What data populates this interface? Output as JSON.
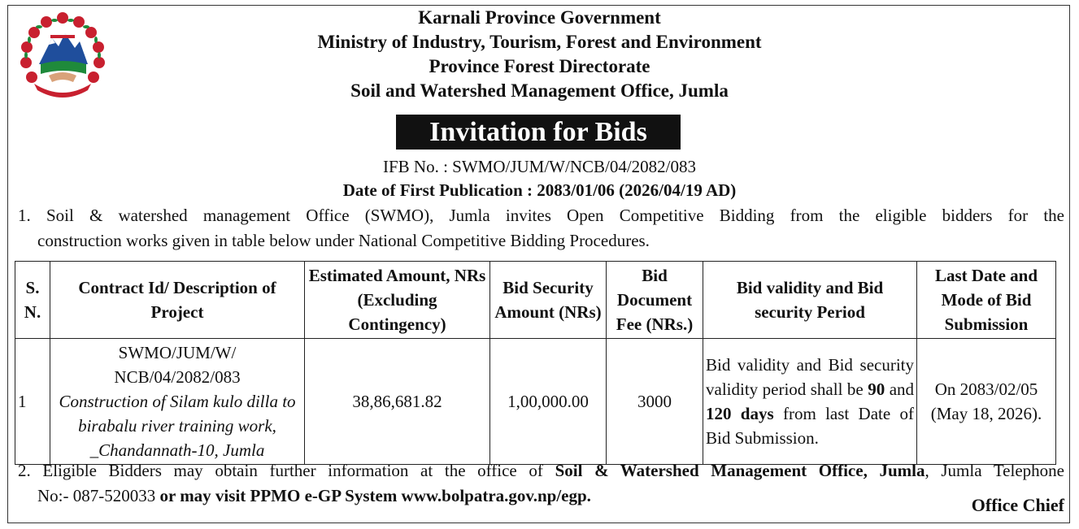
{
  "header": {
    "line1": "Karnali Province Government",
    "line2": "Ministry of Industry, Tourism, Forest and Environment",
    "line3": "Province Forest Directorate",
    "line4": "Soil and Watershed Management Office, Jumla"
  },
  "emblem": {
    "icon": "government-emblem-icon",
    "colors": {
      "red": "#c8202f",
      "green": "#1f8a3b",
      "blue": "#1f4e9c"
    }
  },
  "title": "Invitation for Bids",
  "ifb_no": "IFB No. : SWMO/JUM/W/NCB/04/2082/083",
  "publication_date": "Date of First Publication : 2083/01/06 (2026/04/19 AD)",
  "para1": {
    "line1": "1. Soil & watershed management Office (SWMO), Jumla invites Open Competitive Bidding from the eligible bidders for the",
    "line2": "construction works given in table below under National Competitive Bidding Procedures."
  },
  "table": {
    "headers": {
      "sn_1": "S.",
      "sn_2": "N.",
      "desc": "Contract Id/ Description of Project",
      "amount": "Estimated Amount, NRs (Excluding Contingency)",
      "security": "Bid Security Amount (NRs)",
      "fee": "Bid Document Fee (NRs.)",
      "validity": "Bid validity and Bid security Period",
      "last_date": "Last Date and Mode of Bid Submission"
    },
    "row": {
      "sn": "1",
      "contract_id_1": "SWMO/JUM/W/",
      "contract_id_2": "NCB/04/2082/083",
      "description": "Construction of Silam kulo dilla to birabalu river training work, _Chandannath-10, Jumla",
      "amount": "38,86,681.82",
      "security": "1,00,000.00",
      "fee": "3000",
      "validity_1": "Bid validity and Bid security validity period shall be",
      "validity_days1": "90",
      "validity_and": "and",
      "validity_days2": "120 days",
      "validity_2": "from last Date of Bid Submission.",
      "last_date": "On 2083/02/05 (May 18, 2026)."
    }
  },
  "para2": {
    "prefix": "2. Eligible Bidders may obtain further information at the office of",
    "office": "Soil & Watershed Management Office, Jumla",
    "suffix": ", Jumla Telephone",
    "line2_prefix": "No:- 087-520033",
    "line2_bold": "or may visit PPMO e-GP System www.bolpatra.gov.np/egp."
  },
  "signature": "Office Chief"
}
